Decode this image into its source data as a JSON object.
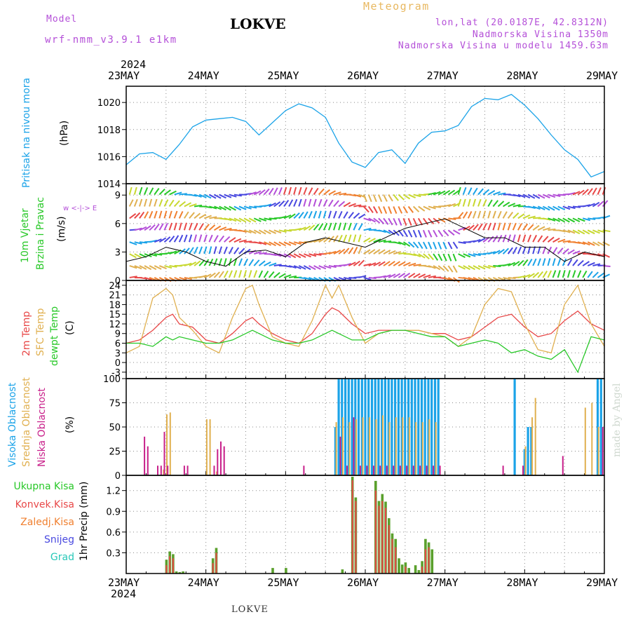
{
  "header": {
    "model_label": "Model",
    "model_name": "wrf-nmm_v3.9.1 e1km",
    "title": "LOKVE",
    "meteogram_label": "Meteogram",
    "lonlat": "lon,lat (20.0187E, 42.8312N)",
    "altitude": "Nadmorska Visina 1350m",
    "model_altitude": "Nadmorska Visina u modelu 1459.63m",
    "year_top": "2024",
    "year_bottom": "2024",
    "bottom_title": "LOKVE",
    "credit": "made by Angel"
  },
  "dates": [
    "23MAY",
    "24MAY",
    "25MAY",
    "26MAY",
    "27MAY",
    "28MAY",
    "29MAY"
  ],
  "colors": {
    "pressure": "#1ba3e8",
    "t2m": "#e84848",
    "sfc": "#e0b050",
    "dewpt": "#28c828",
    "high_cloud": "#1ba3e8",
    "mid_cloud": "#e0b050",
    "low_cloud": "#c8208a",
    "total_precip": "#5aa02c",
    "conv_precip": "#e84848",
    "freezing": "#f08030",
    "snow": "#4848e0",
    "grad": "#28c8b8",
    "wind_speed": "#000000"
  },
  "chart_data": [
    {
      "type": "line",
      "title": "Pritisak na nivou mora",
      "ylabel": "(hPa)",
      "ylim": [
        1014,
        1021.2
      ],
      "yticks": [
        1014,
        1016,
        1018,
        1020
      ],
      "x_unit": "hours since 23MAY 00UTC",
      "series": [
        {
          "name": "Pritisak na nivou mora",
          "x": [
            0,
            4,
            8,
            12,
            16,
            20,
            24,
            28,
            32,
            36,
            40,
            44,
            48,
            52,
            56,
            60,
            64,
            68,
            72,
            76,
            80,
            84,
            88,
            92,
            96,
            100,
            104,
            108,
            112,
            116,
            120,
            124,
            128,
            132,
            136,
            140,
            144
          ],
          "values": [
            1015.4,
            1016.2,
            1016.3,
            1015.8,
            1016.9,
            1018.2,
            1018.7,
            1018.8,
            1018.9,
            1018.6,
            1017.6,
            1018.5,
            1019.4,
            1019.9,
            1019.6,
            1018.9,
            1017.0,
            1015.6,
            1015.2,
            1016.3,
            1016.5,
            1015.5,
            1017.0,
            1017.8,
            1017.9,
            1018.3,
            1019.7,
            1020.3,
            1020.2,
            1020.6,
            1019.8,
            1018.8,
            1017.6,
            1016.5,
            1015.8,
            1014.5,
            1014.9
          ]
        }
      ]
    },
    {
      "type": "line",
      "title": "10m Vjetar Brzina i Pravac",
      "ylabel": "(m/s)",
      "legend_compass": "w  <-|->  E",
      "ylim": [
        0,
        10.2
      ],
      "yticks": [
        0,
        3,
        6,
        9
      ],
      "series": [
        {
          "name": "10m Vjetar Brzina",
          "x": [
            0,
            6,
            12,
            18,
            24,
            30,
            36,
            42,
            48,
            54,
            60,
            66,
            72,
            78,
            84,
            90,
            96,
            102,
            108,
            114,
            120,
            126,
            132,
            138,
            144
          ],
          "values": [
            2.0,
            2.5,
            3.5,
            3.0,
            2.0,
            1.5,
            3.0,
            3.2,
            2.5,
            4.0,
            4.5,
            4.0,
            3.5,
            4.5,
            5.5,
            6.0,
            6.5,
            5.5,
            4.5,
            4.5,
            3.5,
            3.5,
            2.0,
            3.0,
            2.5
          ]
        }
      ]
    },
    {
      "type": "line",
      "title": "2m Temp / SFC Temp / dewpt Temp",
      "ylabel": "(C)",
      "ylim": [
        -5,
        25.5
      ],
      "yticks": [
        -3,
        0,
        3,
        6,
        9,
        12,
        15,
        18,
        21,
        24
      ],
      "series": [
        {
          "name": "2m Temp",
          "x": [
            0,
            4,
            8,
            12,
            14,
            16,
            20,
            24,
            28,
            32,
            36,
            38,
            40,
            44,
            48,
            52,
            56,
            60,
            62,
            64,
            68,
            72,
            76,
            80,
            84,
            88,
            92,
            96,
            100,
            104,
            108,
            112,
            116,
            120,
            124,
            128,
            132,
            136,
            140,
            144
          ],
          "values": [
            6,
            7,
            10,
            14,
            15,
            12,
            11,
            7,
            6,
            9,
            13,
            14,
            12,
            9,
            7,
            6,
            9,
            15,
            17,
            16,
            12,
            9,
            10,
            10,
            10,
            10,
            9,
            9,
            7,
            8,
            11,
            14,
            15,
            11,
            8,
            9,
            13,
            16,
            12,
            10
          ]
        },
        {
          "name": "SFC Temp",
          "x": [
            0,
            4,
            8,
            12,
            14,
            16,
            20,
            24,
            28,
            32,
            36,
            38,
            40,
            44,
            48,
            52,
            56,
            60,
            62,
            64,
            68,
            72,
            76,
            80,
            84,
            88,
            92,
            96,
            100,
            104,
            108,
            112,
            116,
            120,
            124,
            128,
            132,
            136,
            140,
            144
          ],
          "values": [
            3,
            5,
            20,
            23,
            21,
            14,
            10,
            5,
            3,
            14,
            23,
            24,
            18,
            8,
            6,
            5,
            13,
            24,
            20,
            24,
            14,
            6,
            9,
            10,
            10,
            10,
            9,
            8,
            5,
            8,
            18,
            23,
            22,
            12,
            4,
            3,
            18,
            24,
            12,
            5
          ]
        },
        {
          "name": "dewpt Temp",
          "x": [
            0,
            4,
            8,
            12,
            14,
            16,
            20,
            24,
            28,
            32,
            36,
            38,
            40,
            44,
            48,
            52,
            56,
            60,
            62,
            64,
            68,
            72,
            76,
            80,
            84,
            88,
            92,
            96,
            100,
            104,
            108,
            112,
            116,
            120,
            124,
            128,
            132,
            136,
            140,
            144
          ],
          "values": [
            6,
            6,
            5,
            8,
            7,
            8,
            7,
            6,
            6,
            7,
            9,
            10,
            9,
            7,
            6,
            6,
            7,
            9,
            10,
            9,
            7,
            7,
            9,
            10,
            10,
            9,
            8,
            8,
            5,
            6,
            7,
            6,
            3,
            4,
            2,
            1,
            4,
            -3,
            8,
            7
          ]
        }
      ]
    },
    {
      "type": "bar",
      "title": "Visoka / Srednja / Niska Oblacnost",
      "ylabel": "(%)",
      "ylim": [
        0,
        100
      ],
      "yticks": [
        0,
        25,
        50,
        75,
        100
      ],
      "series": [
        {
          "name": "Visoka Oblacnost",
          "x": [
            63,
            64,
            65,
            66,
            67,
            68,
            69,
            70,
            71,
            72,
            73,
            74,
            75,
            76,
            77,
            78,
            79,
            80,
            81,
            82,
            83,
            84,
            85,
            86,
            87,
            88,
            89,
            90,
            91,
            92,
            93,
            94,
            117,
            120,
            121,
            122,
            142,
            143
          ],
          "values": [
            50,
            100,
            100,
            100,
            100,
            100,
            100,
            100,
            100,
            100,
            100,
            100,
            100,
            100,
            100,
            100,
            100,
            100,
            100,
            100,
            100,
            100,
            100,
            100,
            100,
            100,
            100,
            100,
            100,
            100,
            100,
            100,
            100,
            27,
            50,
            50,
            100,
            100
          ]
        },
        {
          "name": "Srednja Oblacnost",
          "x": [
            11,
            12,
            13,
            24,
            25,
            27,
            63,
            65,
            67,
            69,
            71,
            73,
            75,
            77,
            79,
            81,
            83,
            85,
            87,
            89,
            91,
            93,
            120,
            122,
            123,
            138,
            140,
            142
          ],
          "values": [
            6,
            63,
            65,
            58,
            58,
            4,
            55,
            60,
            55,
            58,
            60,
            60,
            58,
            62,
            55,
            60,
            60,
            60,
            55,
            55,
            58,
            55,
            30,
            60,
            80,
            70,
            75,
            50
          ]
        },
        {
          "name": "Niska Oblacnost",
          "x": [
            5,
            6,
            9,
            10,
            11,
            12,
            17,
            18,
            26,
            27,
            28,
            29,
            53,
            64,
            66,
            68,
            70,
            72,
            74,
            76,
            78,
            80,
            82,
            84,
            86,
            88,
            90,
            92,
            94,
            113,
            119,
            131,
            143
          ],
          "values": [
            40,
            30,
            10,
            10,
            45,
            10,
            10,
            10,
            10,
            27,
            35,
            30,
            10,
            40,
            10,
            60,
            10,
            10,
            10,
            10,
            10,
            10,
            10,
            10,
            10,
            10,
            10,
            10,
            10,
            10,
            10,
            20,
            50
          ]
        }
      ]
    },
    {
      "type": "bar",
      "title": "1hr Precip",
      "ylabel": "1hr Precip (mm)",
      "ylim": [
        0,
        1.42
      ],
      "yticks": [
        0.3,
        0.6,
        0.9,
        1.2
      ],
      "legend": [
        "Ukupna Kisa",
        "Konvek.Kisa",
        "Zaledj.Kisa",
        "Snijeg",
        "Grad"
      ],
      "series": [
        {
          "name": "Ukupna Kisa",
          "x": [
            12,
            13,
            14,
            15,
            16,
            17,
            26,
            27,
            44,
            48,
            65,
            68,
            69,
            75,
            76,
            77,
            78,
            79,
            80,
            81,
            82,
            83,
            84,
            85,
            87,
            88,
            89,
            90,
            91,
            92
          ],
          "values": [
            0.2,
            0.32,
            0.28,
            0.03,
            0.02,
            0.03,
            0.22,
            0.37,
            0.08,
            0.08,
            0.06,
            1.4,
            1.1,
            1.34,
            1.05,
            1.15,
            1.04,
            0.8,
            0.58,
            0.5,
            0.22,
            0.13,
            0.16,
            0.08,
            0.12,
            0.05,
            0.18,
            0.5,
            0.45,
            0.35
          ]
        },
        {
          "name": "Konvek.Kisa",
          "x": [
            12,
            13,
            14,
            26,
            27,
            68,
            69,
            75,
            76,
            77,
            78,
            79,
            80,
            81,
            84,
            89,
            90,
            91
          ],
          "values": [
            0.12,
            0.25,
            0.22,
            0.15,
            0.3,
            1.35,
            1.05,
            1.2,
            0.98,
            1.05,
            0.95,
            0.7,
            0.5,
            0.38,
            0.1,
            0.1,
            0.35,
            0.38
          ]
        }
      ]
    }
  ]
}
